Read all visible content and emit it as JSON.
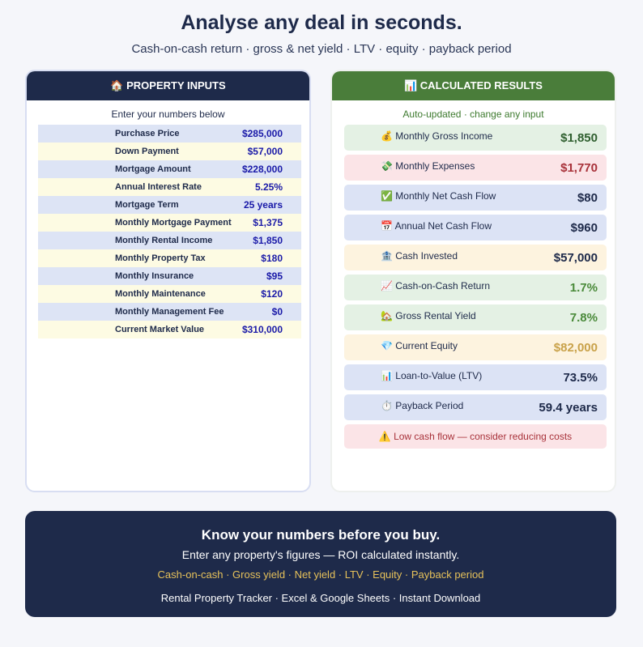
{
  "header": {
    "title": "Analyse any deal in seconds.",
    "subtitle": "Cash-on-cash return · gross & net yield · LTV · equity · payback period"
  },
  "inputs": {
    "title": "🏠 PROPERTY INPUTS",
    "hint": "Enter your numbers below",
    "rows": [
      [
        "Purchase Price",
        "$285,000"
      ],
      [
        "Down Payment",
        "$57,000"
      ],
      [
        "Mortgage Amount",
        "$228,000"
      ],
      [
        "Annual Interest Rate",
        "5.25%"
      ],
      [
        "Mortgage Term",
        "25 years"
      ],
      [
        "Monthly Mortgage Payment",
        "$1,375"
      ],
      [
        "Monthly Rental Income",
        "$1,850"
      ],
      [
        "Monthly Property Tax",
        "$180"
      ],
      [
        "Monthly Insurance",
        "$95"
      ],
      [
        "Monthly Maintenance",
        "$120"
      ],
      [
        "Monthly Management Fee",
        "$0"
      ],
      [
        "Current Market Value",
        "$310,000"
      ]
    ]
  },
  "results": {
    "title": "📊 CALCULATED RESULTS",
    "hint": "Auto-updated · change any input",
    "rows": [
      {
        "label": "💰 Monthly Gross Income",
        "value": "$1,850",
        "bg": "#e4f1e4",
        "color": "#2f5f2f"
      },
      {
        "label": "💸 Monthly Expenses",
        "value": "$1,770",
        "bg": "#fbe4e7",
        "color": "#a8323a"
      },
      {
        "label": "✅ Monthly Net Cash Flow",
        "value": "$80",
        "bg": "#dce3f5",
        "color": "#1e2a4a"
      },
      {
        "label": "📅 Annual Net Cash Flow",
        "value": "$960",
        "bg": "#dce3f5",
        "color": "#1e2a4a"
      },
      {
        "label": "🏦 Cash Invested",
        "value": "$57,000",
        "bg": "#fdf3df",
        "color": "#1e2a4a"
      },
      {
        "label": "📈 Cash-on-Cash Return",
        "value": "1.7%",
        "bg": "#e4f1e4",
        "color": "#4a8a3a"
      },
      {
        "label": "🏡 Gross Rental Yield",
        "value": "7.8%",
        "bg": "#e4f1e4",
        "color": "#4a8a3a"
      },
      {
        "label": "💎 Current Equity",
        "value": "$82,000",
        "bg": "#fdf3df",
        "color": "#c9a24a"
      },
      {
        "label": "📊 Loan-to-Value (LTV)",
        "value": "73.5%",
        "bg": "#dce3f5",
        "color": "#1e2a4a"
      },
      {
        "label": "⏱️ Payback Period",
        "value": "59.4 years",
        "bg": "#dce3f5",
        "color": "#1e2a4a"
      }
    ],
    "warning": "⚠️ Low cash flow — consider reducing costs"
  },
  "footer": {
    "title": "Know your numbers before you buy.",
    "subtitle": "Enter any property's figures — ROI calculated instantly.",
    "features": "Cash-on-cash · Gross yield · Net yield · LTV · Equity · Payback period",
    "tagline": "Rental Property Tracker · Excel & Google Sheets · Instant Download"
  }
}
